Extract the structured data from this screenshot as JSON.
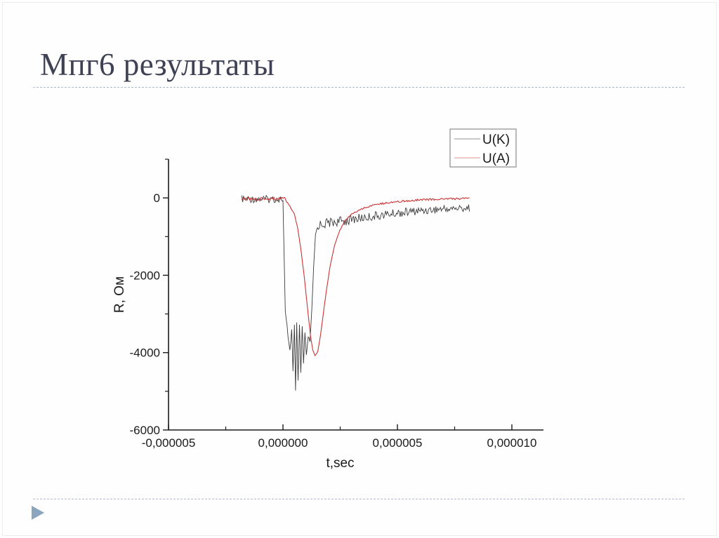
{
  "slide": {
    "title": "Мпг6 результаты",
    "title_color": "#3e4254",
    "divider_color": "#a9bdd0",
    "accent_triangle_color": "#8ba5bf"
  },
  "chart_data": {
    "type": "line",
    "title": "",
    "xlabel": "t,sec",
    "ylabel": "R, Ом",
    "xlim": [
      -5e-06,
      1.138e-05
    ],
    "ylim": [
      -6000,
      1000
    ],
    "grid": false,
    "x_ticks": [
      {
        "v": -5e-06,
        "label": "-0,000005"
      },
      {
        "v": 0,
        "label": "0,000000"
      },
      {
        "v": 5e-06,
        "label": "0,000005"
      },
      {
        "v": 1e-05,
        "label": "0,000010"
      }
    ],
    "x_minor_ticks": [
      -2.5e-06,
      2.5e-06,
      7.5e-06
    ],
    "y_ticks": [
      {
        "v": 0,
        "label": "0"
      },
      {
        "v": -2000,
        "label": "-2000"
      },
      {
        "v": -4000,
        "label": "-4000"
      },
      {
        "v": -6000,
        "label": "-6000"
      }
    ],
    "y_minor_ticks": [
      1000,
      -1000,
      -3000,
      -5000
    ],
    "legend": {
      "position": "top-right",
      "entries": [
        {
          "name": "U(K)",
          "color": "#3a3a3a"
        },
        {
          "name": "U(A)",
          "color": "#cc3333"
        }
      ]
    },
    "series": [
      {
        "name": "U(K)",
        "color": "#3a3a3a",
        "points_format": [
          "t_sec",
          "R_ohm",
          "noise_amp_ohm"
        ],
        "points": [
          [
            -1.8e-06,
            -30,
            95
          ],
          [
            -2e-08,
            -30,
            95
          ],
          [
            0.0,
            -60,
            0
          ],
          [
            1e-07,
            -2950,
            40
          ],
          [
            3e-07,
            -3950,
            80
          ],
          [
            3.8e-07,
            -3400,
            60
          ],
          [
            4.4e-07,
            -4480,
            0
          ],
          [
            5e-07,
            -3280,
            0
          ],
          [
            5.5e-07,
            -4980,
            0
          ],
          [
            6e-07,
            -3220,
            0
          ],
          [
            6.6e-07,
            -4720,
            0
          ],
          [
            7.2e-07,
            -3280,
            0
          ],
          [
            7.8e-07,
            -4520,
            0
          ],
          [
            8.4e-07,
            -3320,
            0
          ],
          [
            9e-07,
            -4280,
            0
          ],
          [
            9.6e-07,
            -3480,
            0
          ],
          [
            1.02e-06,
            -4060,
            0
          ],
          [
            1.1e-06,
            -3620,
            40
          ],
          [
            1.18e-06,
            -3700,
            40
          ],
          [
            1.26e-06,
            -2900,
            30
          ],
          [
            1.34e-06,
            -1800,
            30
          ],
          [
            1.42e-06,
            -950,
            60
          ],
          [
            1.55e-06,
            -700,
            130
          ],
          [
            2e-06,
            -640,
            130
          ],
          [
            2.6e-06,
            -600,
            125
          ],
          [
            3.2e-06,
            -540,
            120
          ],
          [
            4e-06,
            -470,
            115
          ],
          [
            5e-06,
            -390,
            110
          ],
          [
            6e-06,
            -330,
            105
          ],
          [
            7e-06,
            -285,
            100
          ],
          [
            8.15e-06,
            -260,
            95
          ]
        ]
      },
      {
        "name": "U(A)",
        "color": "#cc3333",
        "points_format": [
          "t_sec",
          "R_ohm",
          "noise_amp_ohm"
        ],
        "points": [
          [
            -1.8e-06,
            -25,
            40
          ],
          [
            8e-08,
            -25,
            40
          ],
          [
            2e-07,
            -120,
            15
          ],
          [
            3.5e-07,
            -270,
            12
          ],
          [
            5e-07,
            -420,
            10
          ],
          [
            6.5e-07,
            -800,
            10
          ],
          [
            8e-07,
            -1400,
            10
          ],
          [
            9.5e-07,
            -2150,
            10
          ],
          [
            1.08e-06,
            -2900,
            10
          ],
          [
            1.2e-06,
            -3550,
            8
          ],
          [
            1.3e-06,
            -3930,
            8
          ],
          [
            1.4e-06,
            -4080,
            6
          ],
          [
            1.52e-06,
            -3980,
            8
          ],
          [
            1.64e-06,
            -3550,
            8
          ],
          [
            1.76e-06,
            -3000,
            8
          ],
          [
            1.9e-06,
            -2380,
            8
          ],
          [
            2.05e-06,
            -1800,
            10
          ],
          [
            2.25e-06,
            -1230,
            10
          ],
          [
            2.45e-06,
            -880,
            12
          ],
          [
            2.7e-06,
            -600,
            14
          ],
          [
            3e-06,
            -420,
            16
          ],
          [
            3.4e-06,
            -290,
            18
          ],
          [
            3.9e-06,
            -195,
            20
          ],
          [
            4.5e-06,
            -130,
            22
          ],
          [
            5.3e-06,
            -80,
            24
          ],
          [
            6.2e-06,
            -45,
            25
          ],
          [
            7.2e-06,
            -25,
            25
          ],
          [
            8.15e-06,
            -15,
            25
          ]
        ]
      }
    ]
  }
}
